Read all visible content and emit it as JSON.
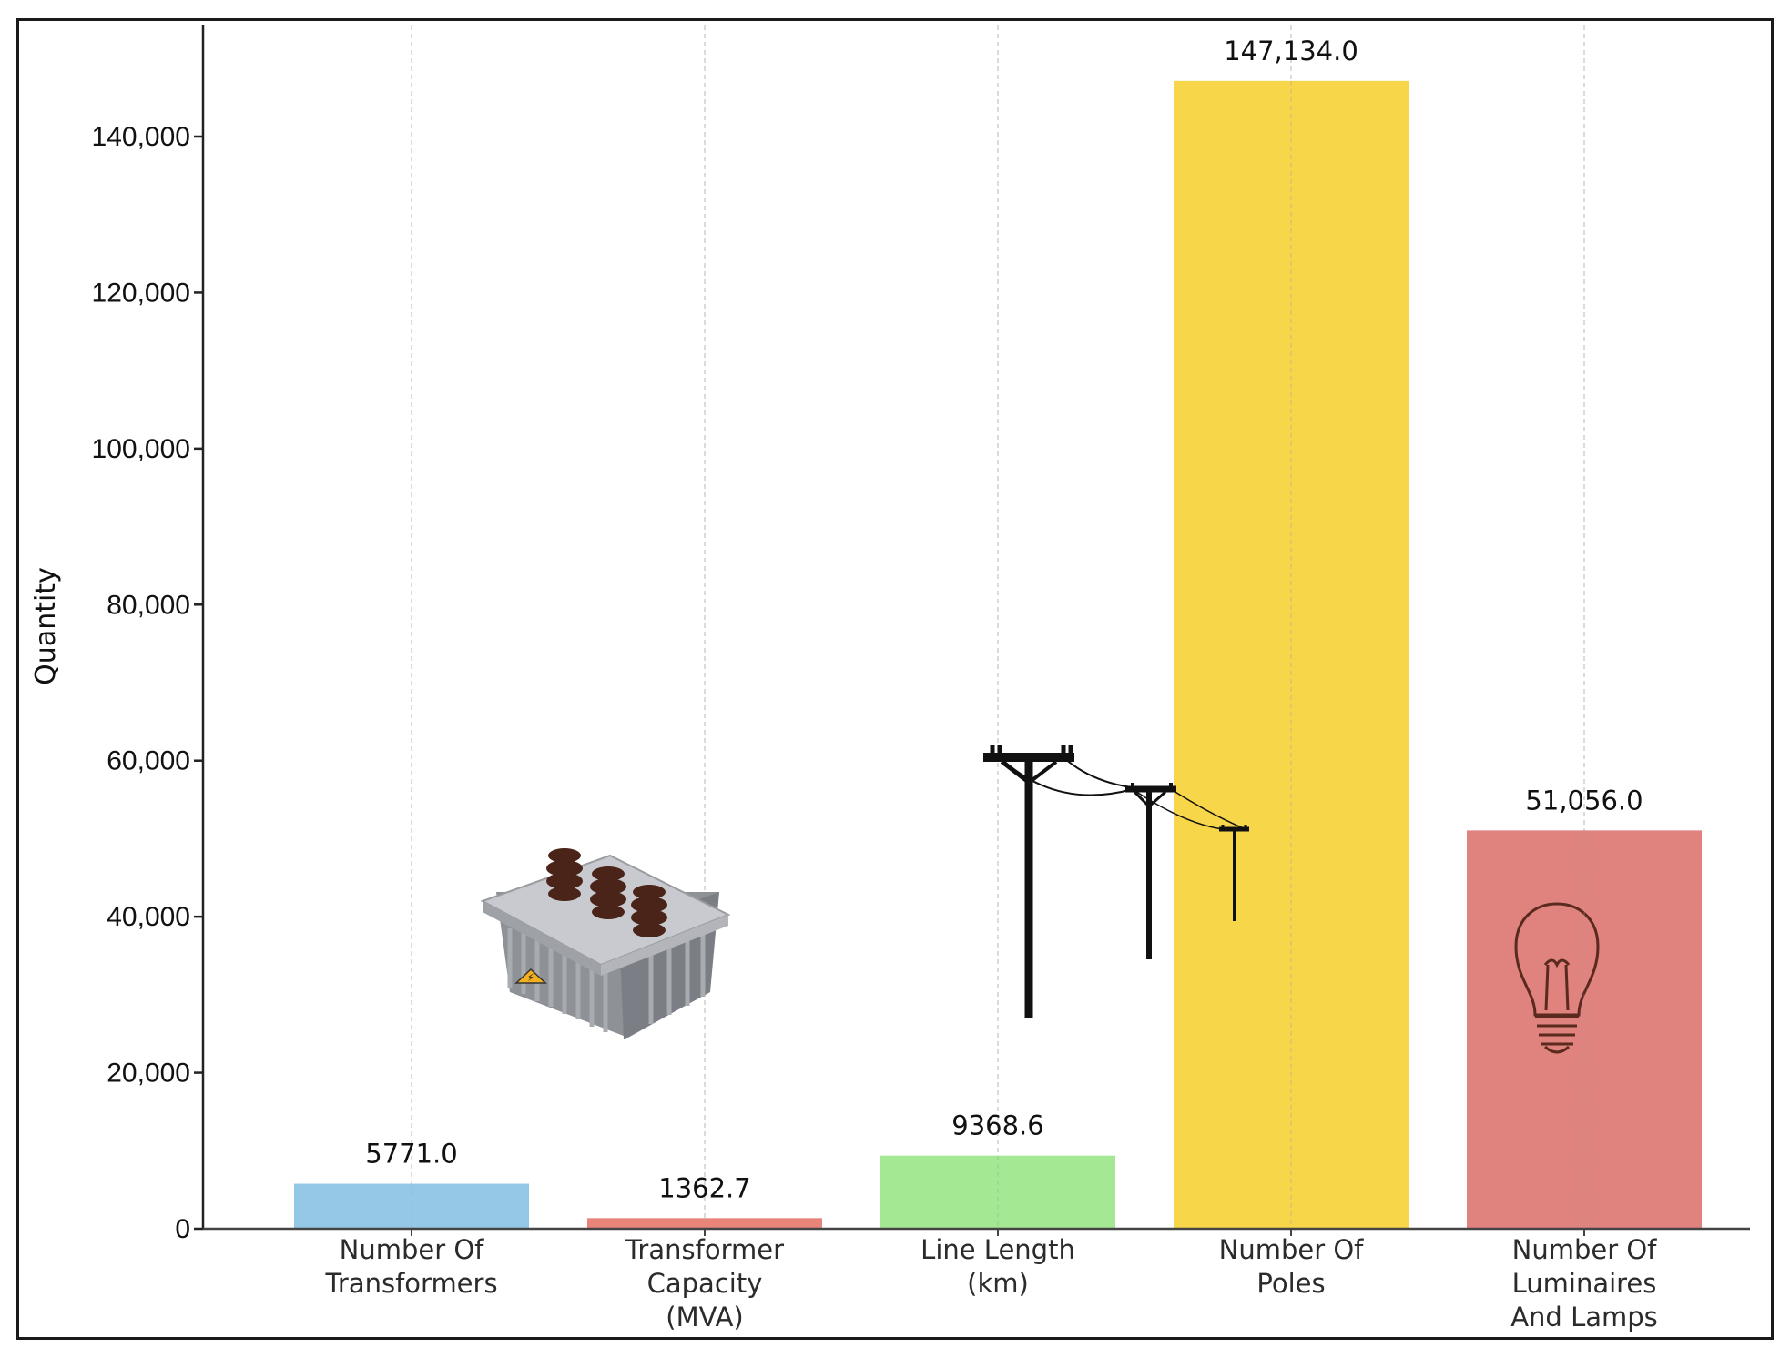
{
  "chart_data": {
    "type": "bar",
    "title": "",
    "xlabel": "",
    "ylabel": "Quantity",
    "ylim": [
      0,
      155000
    ],
    "yticks": [
      0,
      20000,
      40000,
      60000,
      80000,
      100000,
      120000,
      140000
    ],
    "ytick_labels": [
      "0",
      "20,000",
      "40,000",
      "60,000",
      "80,000",
      "100,000",
      "120,000",
      "140,000"
    ],
    "categories": [
      [
        "Number Of",
        "Transformers"
      ],
      [
        "Transformer",
        "Capacity",
        "(MVA)"
      ],
      [
        "Line Length",
        "(km)"
      ],
      [
        "Number Of",
        "Poles"
      ],
      [
        "Number Of",
        "Luminaires",
        "And Lamps"
      ]
    ],
    "values": [
      5771.0,
      1362.7,
      9368.6,
      147134.0,
      51056.0
    ],
    "value_labels": [
      "5771.0",
      "1362.7",
      "9368.6",
      "147,134.0",
      "51,056.0"
    ],
    "colors": [
      "#95c8e6",
      "#e8847a",
      "#a4e894",
      "#f7d64a",
      "#e0827e"
    ],
    "grid": "vertical-dashed",
    "icons": [
      "transformer-icon",
      "power-line-poles-icon",
      "light-bulb-icon"
    ]
  }
}
